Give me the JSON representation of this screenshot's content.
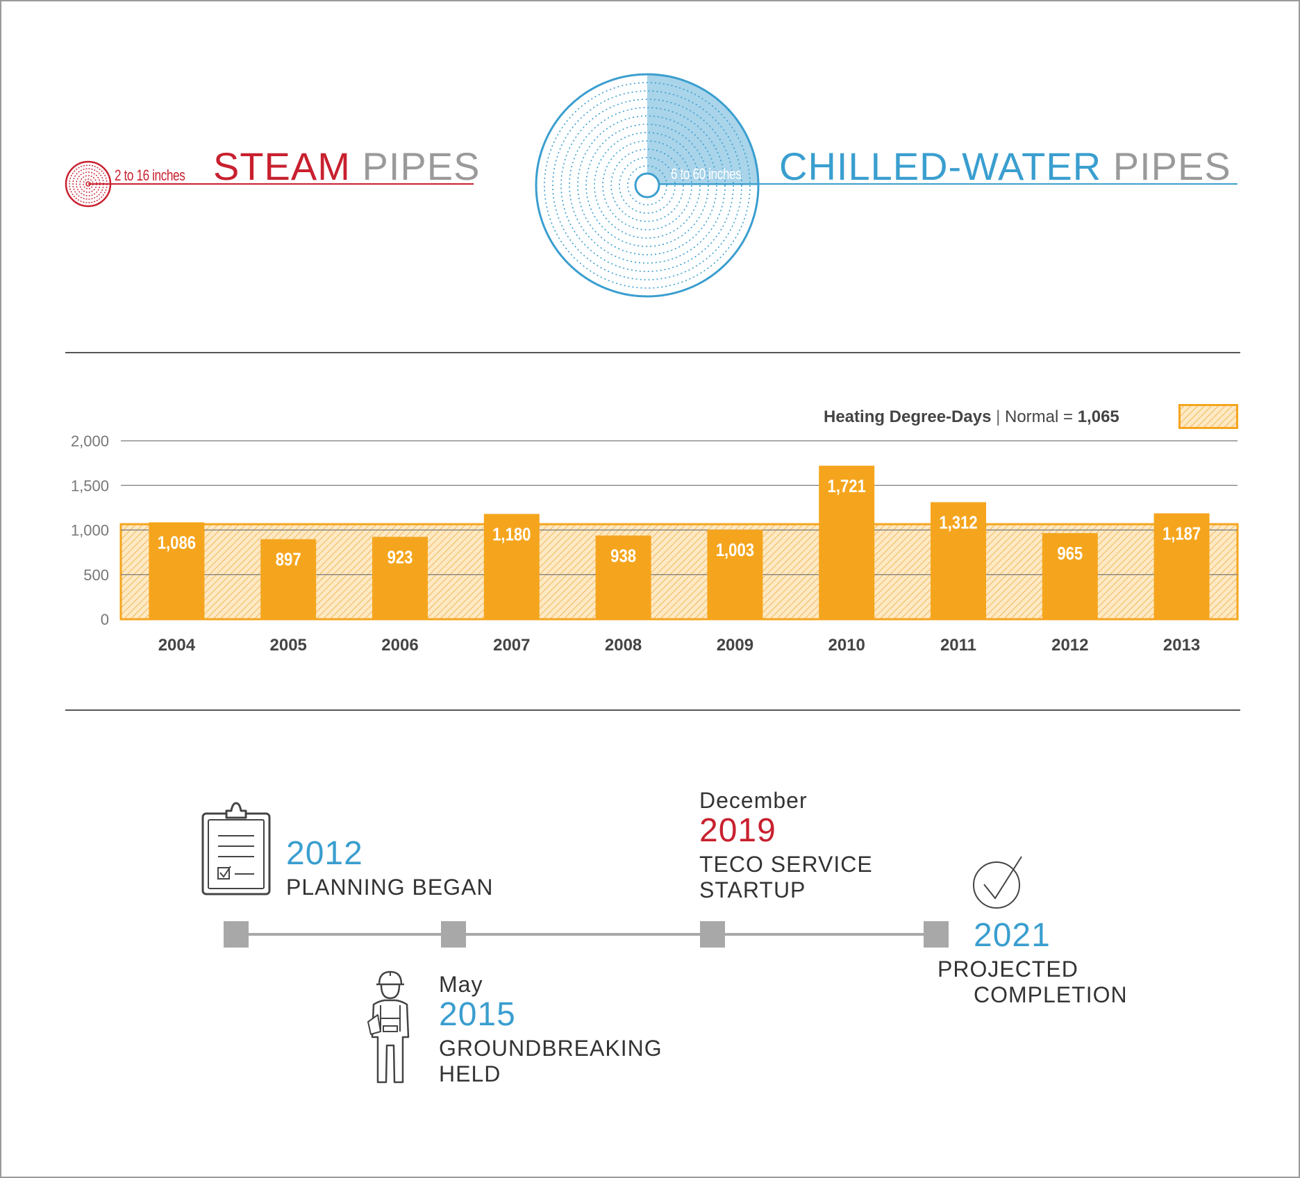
{
  "pipes": {
    "steam": {
      "word": "STEAM",
      "suffix": "PIPES",
      "size": "2 to 16 inches",
      "color": "#c8202f"
    },
    "chilled": {
      "word": "CHILLED-WATER",
      "suffix": "PIPES",
      "size": "6 to 60 inches",
      "color": "#3a9ecf"
    },
    "suffix_color": "#9a9a9a"
  },
  "legend": {
    "bold_label": "Heating Degree-Days",
    "separator": "|",
    "normal_label": "Normal =",
    "normal_value": "1,065"
  },
  "chart_data": {
    "type": "bar",
    "title": "Heating Degree-Days",
    "categories": [
      "2004",
      "2005",
      "2006",
      "2007",
      "2008",
      "2009",
      "2010",
      "2011",
      "2012",
      "2013"
    ],
    "values": [
      1086,
      897,
      923,
      1180,
      938,
      1003,
      1721,
      1312,
      965,
      1187
    ],
    "value_labels": [
      "1,086",
      "897",
      "923",
      "1,180",
      "938",
      "1,003",
      "1,721",
      "1,312",
      "965",
      "1,187"
    ],
    "reference_band": {
      "label": "Normal",
      "value": 1065
    },
    "yticks": [
      0,
      500,
      1000,
      1500,
      2000
    ],
    "ytick_labels": [
      "0",
      "500",
      "1,000",
      "1,500",
      "2,000"
    ],
    "ylim": [
      0,
      2000
    ],
    "xlabel": "",
    "ylabel": "",
    "grid": true,
    "bar_color": "#f5a51d"
  },
  "timeline": {
    "events": [
      {
        "id": "planning",
        "month": "",
        "year": "2012",
        "label_lines": [
          "PLANNING BEGAN"
        ],
        "year_color": "blue"
      },
      {
        "id": "groundbreaking",
        "month": "May",
        "year": "2015",
        "label_lines": [
          "GROUNDBREAKING",
          "HELD"
        ],
        "year_color": "blue"
      },
      {
        "id": "startup",
        "month": "December",
        "year": "2019",
        "label_lines": [
          "TECO SERVICE",
          "STARTUP"
        ],
        "year_color": "red"
      },
      {
        "id": "completion",
        "month": "",
        "year": "2021",
        "label_lines": [
          "PROJECTED",
          "COMPLETION"
        ],
        "year_color": "blue"
      }
    ]
  }
}
